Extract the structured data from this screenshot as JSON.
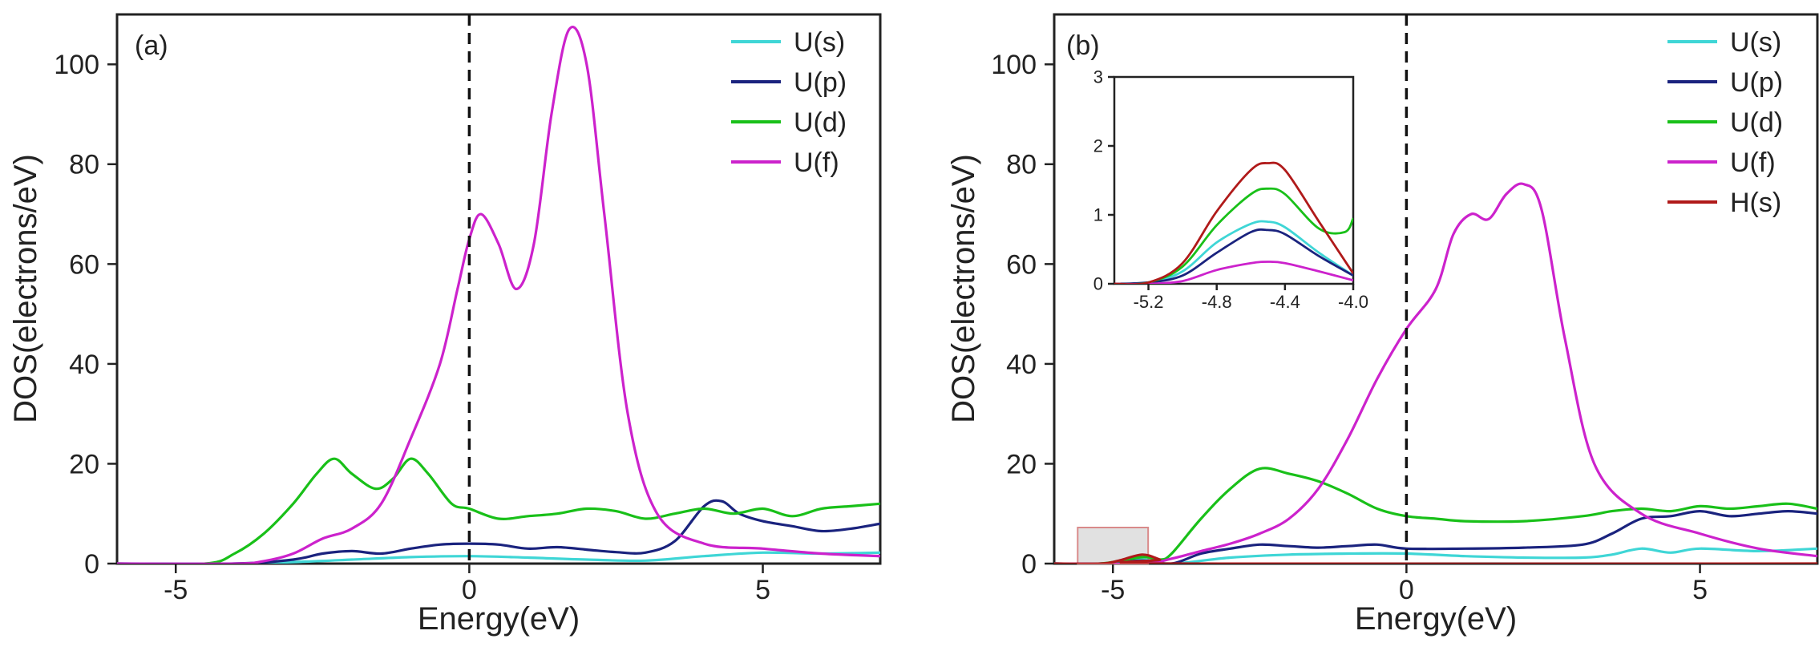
{
  "figure": {
    "panel_a_label": "(a)",
    "panel_b_label": "(b)"
  },
  "colors": {
    "U(s)": "#3fd6d6",
    "U(p)": "#1a237e",
    "U(d)": "#19c019",
    "U(f)": "#cc22cc",
    "H(s)": "#b01a1a"
  },
  "chart_data": [
    {
      "type": "line",
      "panel": "(a)",
      "title": "",
      "xlabel": "Energy(eV)",
      "ylabel": "DOS(electrons/eV)",
      "xlim": [
        -6,
        7
      ],
      "ylim": [
        0,
        110
      ],
      "xticks": [
        -5,
        0,
        5
      ],
      "xtick_labels": [
        "-5",
        "0",
        "5"
      ],
      "yticks": [
        0,
        20,
        40,
        60,
        80,
        100
      ],
      "ytick_labels": [
        "0",
        "20",
        "40",
        "60",
        "80",
        "100"
      ],
      "fermi_level": 0,
      "legend": [
        "U(s)",
        "U(p)",
        "U(d)",
        "U(f)"
      ],
      "series": [
        {
          "name": "U(s)",
          "x": [
            -6,
            -4,
            -3,
            -2,
            -1,
            0,
            1,
            2,
            3,
            4,
            5,
            6,
            7
          ],
          "y": [
            0,
            0,
            0.3,
            0.8,
            1.3,
            1.5,
            1.2,
            0.8,
            0.6,
            1.5,
            2.2,
            2.0,
            2.2
          ]
        },
        {
          "name": "U(p)",
          "x": [
            -6,
            -4,
            -3,
            -2.5,
            -2,
            -1.5,
            -1,
            -0.5,
            0,
            0.5,
            1,
            1.5,
            2,
            2.5,
            3,
            3.5,
            4,
            4.3,
            4.6,
            5,
            5.5,
            6,
            6.5,
            7
          ],
          "y": [
            0,
            0,
            0.8,
            2,
            2.5,
            2,
            3,
            3.8,
            4,
            3.8,
            3,
            3.3,
            2.8,
            2.3,
            2.2,
            4.5,
            11.5,
            12.5,
            10,
            8.5,
            7.5,
            6.5,
            7,
            8
          ]
        },
        {
          "name": "U(d)",
          "x": [
            -6,
            -4.5,
            -4,
            -3.5,
            -3,
            -2.6,
            -2.3,
            -2,
            -1.6,
            -1.3,
            -1,
            -0.7,
            -0.3,
            0,
            0.5,
            1,
            1.5,
            2,
            2.5,
            3,
            3.5,
            4,
            4.5,
            5,
            5.5,
            6,
            6.5,
            7
          ],
          "y": [
            0,
            0,
            2,
            6,
            12,
            18,
            21,
            18,
            15,
            17,
            21,
            18,
            12,
            11,
            9,
            9.5,
            10,
            11,
            10.5,
            9,
            10,
            11,
            10,
            11,
            9.5,
            11,
            11.5,
            12
          ]
        },
        {
          "name": "U(f)",
          "x": [
            -6,
            -4,
            -3.5,
            -3,
            -2.5,
            -2,
            -1.5,
            -1,
            -0.5,
            -0.2,
            0,
            0.2,
            0.5,
            0.8,
            1.1,
            1.4,
            1.7,
            2.0,
            2.3,
            2.7,
            3.2,
            4,
            5,
            6,
            7
          ],
          "y": [
            0,
            0,
            0.5,
            2,
            5,
            7,
            12,
            25,
            40,
            55,
            65,
            70,
            64,
            55,
            64,
            90,
            107,
            100,
            70,
            30,
            10,
            4,
            3,
            2,
            1.5
          ]
        }
      ]
    },
    {
      "type": "line",
      "panel": "(b)",
      "title": "",
      "xlabel": "Energy(eV)",
      "ylabel": "DOS(electrons/eV)",
      "xlim": [
        -6,
        7
      ],
      "ylim": [
        0,
        110
      ],
      "xticks": [
        -5,
        0,
        5
      ],
      "xtick_labels": [
        "-5",
        "0",
        "5"
      ],
      "yticks": [
        0,
        20,
        40,
        60,
        80,
        100
      ],
      "ytick_labels": [
        "0",
        "20",
        "40",
        "60",
        "80",
        "100"
      ],
      "fermi_level": 0,
      "highlight_box_x": [
        -5.6,
        -4.4
      ],
      "legend": [
        "U(s)",
        "U(p)",
        "U(d)",
        "U(f)",
        "H(s)"
      ],
      "series": [
        {
          "name": "U(s)",
          "x": [
            -6,
            -5.2,
            -4.5,
            -4,
            -3,
            -2,
            -1,
            0,
            1,
            2,
            3,
            3.5,
            4,
            4.5,
            5,
            6,
            7
          ],
          "y": [
            0,
            0,
            0.8,
            0,
            1.2,
            1.8,
            2.0,
            2.0,
            1.5,
            1.2,
            1.2,
            1.8,
            3,
            2.2,
            3,
            2.5,
            3
          ]
        },
        {
          "name": "U(p)",
          "x": [
            -6,
            -5.2,
            -4.5,
            -4,
            -3.5,
            -3,
            -2.5,
            -2,
            -1.5,
            -1,
            -0.5,
            0,
            1,
            2,
            3,
            3.5,
            4,
            4.5,
            5,
            5.5,
            6,
            6.5,
            7
          ],
          "y": [
            0,
            0,
            0.6,
            0,
            2,
            3,
            3.8,
            3.5,
            3.2,
            3.5,
            3.8,
            3,
            3,
            3.2,
            3.8,
            6,
            9,
            9.5,
            10.5,
            9.5,
            10,
            10.5,
            10
          ]
        },
        {
          "name": "U(d)",
          "x": [
            -6,
            -5.2,
            -4.5,
            -4.2,
            -4,
            -3.5,
            -3,
            -2.5,
            -2,
            -1.5,
            -1,
            -0.5,
            0,
            0.5,
            1,
            2,
            3,
            3.5,
            4,
            4.5,
            5,
            5.5,
            6,
            6.5,
            7
          ],
          "y": [
            0,
            0,
            1.3,
            0.8,
            2,
            9,
            15,
            19,
            18,
            16.5,
            14,
            11,
            9.5,
            9,
            8.5,
            8.5,
            9.5,
            10.5,
            11,
            10.5,
            11.5,
            11,
            11.5,
            12,
            11
          ]
        },
        {
          "name": "U(f)",
          "x": [
            -6,
            -4.5,
            -4,
            -3.5,
            -3,
            -2.5,
            -2,
            -1.5,
            -1,
            -0.5,
            0,
            0.5,
            0.8,
            1.1,
            1.4,
            1.7,
            2.0,
            2.3,
            2.7,
            3.2,
            4,
            5,
            6,
            7
          ],
          "y": [
            0,
            0,
            1,
            2.5,
            4,
            6,
            9,
            15,
            25,
            37,
            47,
            55,
            66,
            70,
            69,
            74,
            76,
            71,
            45,
            20,
            10,
            6,
            3,
            1.5
          ]
        },
        {
          "name": "H(s)",
          "x": [
            -6,
            -5.2,
            -4.9,
            -4.5,
            -4.2,
            -4.0,
            7
          ],
          "y": [
            0,
            0,
            0.6,
            1.8,
            0.8,
            0,
            0
          ]
        }
      ]
    },
    {
      "type": "line",
      "panel": "(b) inset",
      "title": "",
      "xlabel": "",
      "ylabel": "",
      "xlim": [
        -5.4,
        -4.0
      ],
      "ylim": [
        0,
        3
      ],
      "xticks": [
        -5.2,
        -4.8,
        -4.4,
        -4.0
      ],
      "xtick_labels": [
        "-5.2",
        "-4.8",
        "-4.4",
        "-4.0"
      ],
      "yticks": [
        0,
        1,
        2,
        3
      ],
      "ytick_labels": [
        "0",
        "1",
        "2",
        "3"
      ],
      "series": [
        {
          "name": "U(s)",
          "x": [
            -5.4,
            -5.2,
            -5.0,
            -4.8,
            -4.6,
            -4.5,
            -4.4,
            -4.2,
            -4.0
          ],
          "y": [
            0,
            0.02,
            0.18,
            0.6,
            0.87,
            0.9,
            0.82,
            0.45,
            0.12
          ]
        },
        {
          "name": "U(p)",
          "x": [
            -5.4,
            -5.2,
            -5.0,
            -4.8,
            -4.6,
            -4.5,
            -4.4,
            -4.2,
            -4.0
          ],
          "y": [
            0,
            0.02,
            0.12,
            0.45,
            0.75,
            0.78,
            0.72,
            0.4,
            0.12
          ]
        },
        {
          "name": "U(d)",
          "x": [
            -5.4,
            -5.2,
            -5.0,
            -4.8,
            -4.6,
            -4.5,
            -4.4,
            -4.2,
            -4.05,
            -4.0
          ],
          "y": [
            0,
            0.02,
            0.25,
            0.85,
            1.3,
            1.38,
            1.3,
            0.8,
            0.75,
            0.95
          ]
        },
        {
          "name": "U(f)",
          "x": [
            -5.4,
            -5.2,
            -5.0,
            -4.8,
            -4.6,
            -4.5,
            -4.4,
            -4.2,
            -4.0
          ],
          "y": [
            0,
            0,
            0.04,
            0.2,
            0.3,
            0.32,
            0.3,
            0.18,
            0.05
          ]
        },
        {
          "name": "H(s)",
          "x": [
            -5.4,
            -5.2,
            -5.0,
            -4.8,
            -4.6,
            -4.5,
            -4.4,
            -4.2,
            -4.0
          ],
          "y": [
            0,
            0.02,
            0.3,
            1.05,
            1.65,
            1.75,
            1.65,
            0.9,
            0.15
          ]
        }
      ]
    }
  ]
}
